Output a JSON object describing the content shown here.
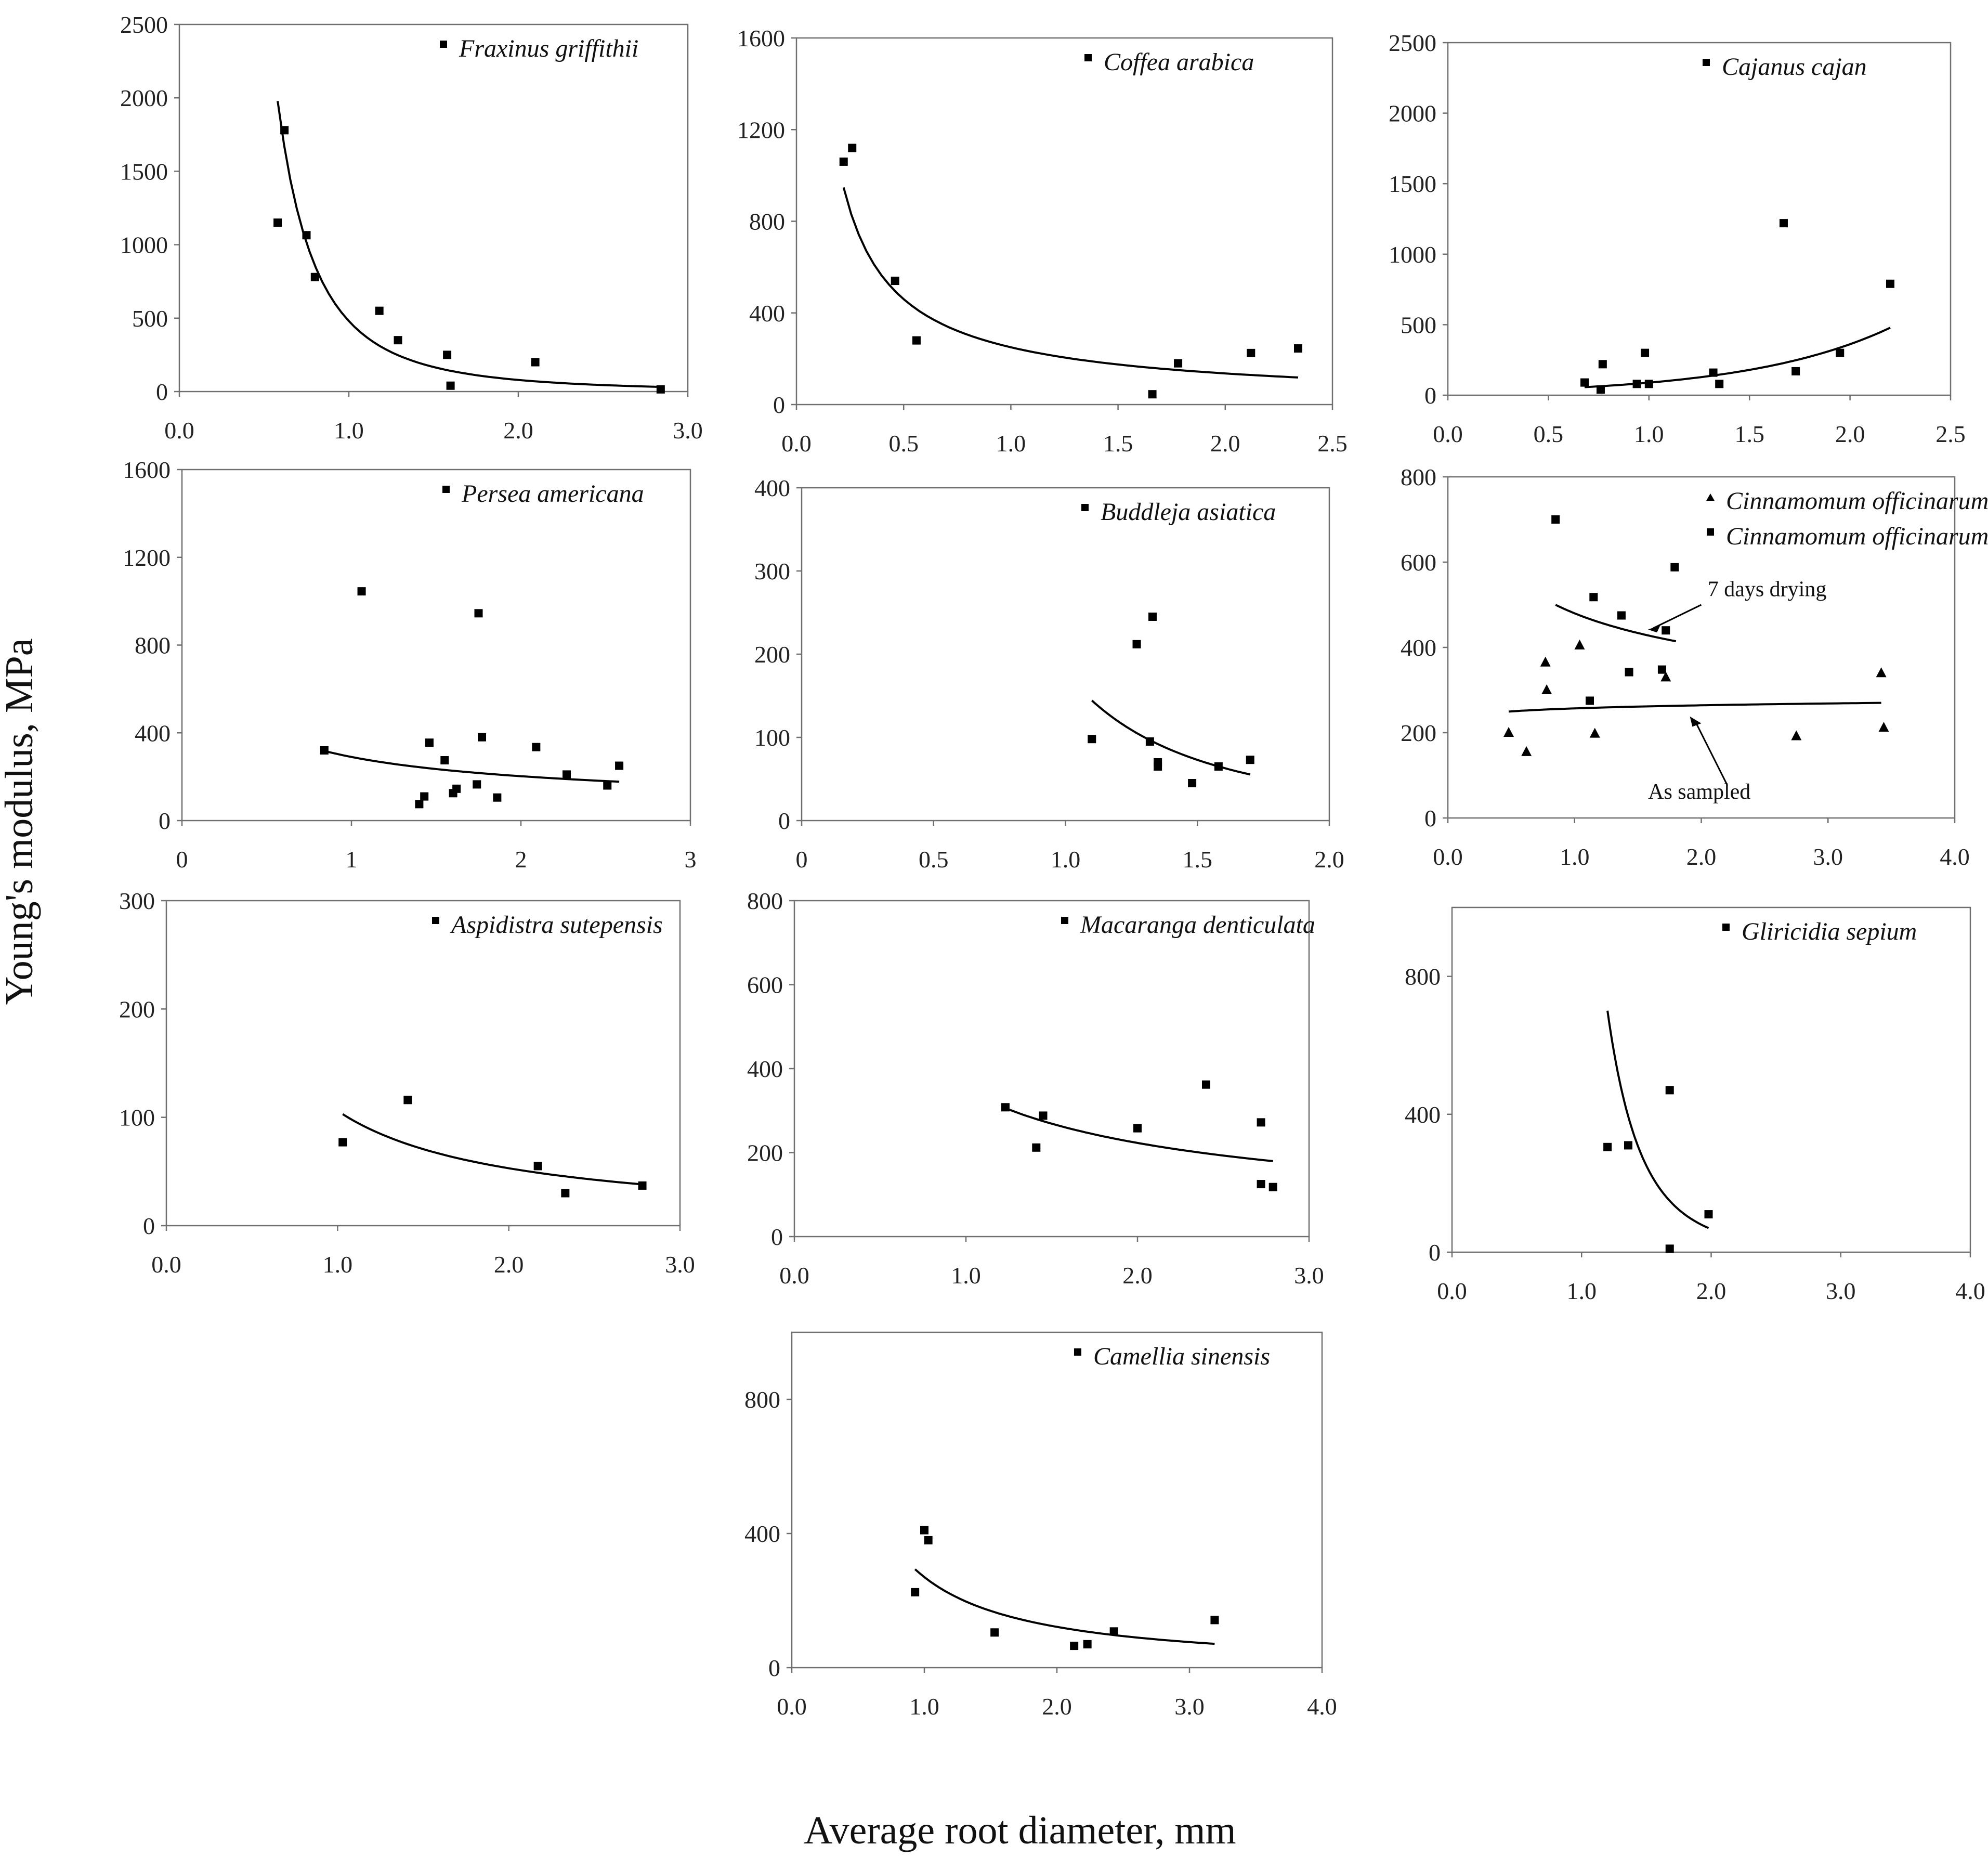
{
  "figure": {
    "ylabel": "Young's modulus, MPa",
    "xlabel": "Average root diameter, mm"
  },
  "chart_data": [
    {
      "type": "scatter",
      "title": "Fraxinus griffithii",
      "xticks": [
        "0.0",
        "1.0",
        "2.0",
        "3.0"
      ],
      "yticks": [
        "0",
        "500",
        "1000",
        "1500",
        "2000",
        "2500"
      ],
      "xlim": [
        0,
        3
      ],
      "ylim": [
        0,
        2500
      ],
      "series": [
        {
          "name": "Fraxinus griffithii",
          "marker": "square",
          "points": [
            [
              0.58,
              1150
            ],
            [
              0.62,
              1780
            ],
            [
              0.75,
              1065
            ],
            [
              0.8,
              780
            ],
            [
              1.18,
              550
            ],
            [
              1.29,
              350
            ],
            [
              1.58,
              250
            ],
            [
              1.6,
              40
            ],
            [
              2.1,
              200
            ],
            [
              2.84,
              15
            ]
          ],
          "fit": {
            "form": "power",
            "a": 480,
            "b": -2.6,
            "x_range": [
              0.58,
              2.84
            ]
          }
        }
      ]
    },
    {
      "type": "scatter",
      "title": "Coffea arabica",
      "xticks": [
        "0.0",
        "0.5",
        "1.0",
        "1.5",
        "2.0",
        "2.5"
      ],
      "yticks": [
        "0",
        "400",
        "800",
        "1200",
        "1600"
      ],
      "xlim": [
        0,
        2.5
      ],
      "ylim": [
        0,
        1600
      ],
      "series": [
        {
          "name": "Coffea arabica",
          "marker": "square",
          "points": [
            [
              0.22,
              1060
            ],
            [
              0.26,
              1120
            ],
            [
              0.46,
              540
            ],
            [
              0.56,
              280
            ],
            [
              1.66,
              45
            ],
            [
              1.78,
              180
            ],
            [
              2.12,
              225
            ],
            [
              2.34,
              245
            ]
          ],
          "fit": {
            "form": "power",
            "a": 250,
            "b": -0.88,
            "x_range": [
              0.22,
              2.34
            ]
          }
        }
      ]
    },
    {
      "type": "scatter",
      "title": "Cajanus cajan",
      "xticks": [
        "0.0",
        "0.5",
        "1.0",
        "1.5",
        "2.0",
        "2.5"
      ],
      "yticks": [
        "0",
        "500",
        "1000",
        "1500",
        "2000",
        "2500"
      ],
      "xlim": [
        0,
        2.5
      ],
      "ylim": [
        0,
        2500
      ],
      "series": [
        {
          "name": "Cajanus cajan",
          "marker": "square",
          "points": [
            [
              0.68,
              90
            ],
            [
              0.76,
              40
            ],
            [
              0.77,
              220
            ],
            [
              0.94,
              80
            ],
            [
              0.98,
              300
            ],
            [
              1.0,
              80
            ],
            [
              1.32,
              160
            ],
            [
              1.35,
              80
            ],
            [
              1.67,
              1220
            ],
            [
              1.73,
              170
            ],
            [
              1.95,
              300
            ],
            [
              2.2,
              790
            ]
          ],
          "fit": {
            "form": "exp",
            "a": 22,
            "b": 1.4,
            "x_range": [
              0.68,
              2.2
            ]
          }
        }
      ]
    },
    {
      "type": "scatter",
      "title": "Persea americana",
      "xticks": [
        "0",
        "1",
        "2",
        "3"
      ],
      "yticks": [
        "0",
        "400",
        "800",
        "1200",
        "1600"
      ],
      "xlim": [
        0,
        3
      ],
      "ylim": [
        0,
        1600
      ],
      "series": [
        {
          "name": "Persea americana",
          "marker": "square",
          "points": [
            [
              0.84,
              320
            ],
            [
              1.06,
              1045
            ],
            [
              1.4,
              75
            ],
            [
              1.43,
              110
            ],
            [
              1.46,
              355
            ],
            [
              1.55,
              275
            ],
            [
              1.6,
              125
            ],
            [
              1.62,
              145
            ],
            [
              1.74,
              165
            ],
            [
              1.75,
              945
            ],
            [
              1.77,
              380
            ],
            [
              1.86,
              105
            ],
            [
              2.09,
              335
            ],
            [
              2.27,
              210
            ],
            [
              2.51,
              160
            ],
            [
              2.58,
              250
            ]
          ],
          "fit": {
            "form": "power",
            "a": 290,
            "b": -0.52,
            "x_range": [
              0.84,
              2.58
            ]
          }
        }
      ]
    },
    {
      "type": "scatter",
      "title": "Buddleja asiatica",
      "xticks": [
        "0",
        "0.5",
        "1.0",
        "1.5",
        "2.0"
      ],
      "yticks": [
        "0",
        "100",
        "200",
        "300",
        "400"
      ],
      "xlim": [
        0,
        2
      ],
      "ylim": [
        0,
        400
      ],
      "series": [
        {
          "name": "Buddleja asiatica",
          "marker": "square",
          "points": [
            [
              1.1,
              98
            ],
            [
              1.27,
              212
            ],
            [
              1.32,
              95
            ],
            [
              1.33,
              245
            ],
            [
              1.35,
              70
            ],
            [
              1.35,
              65
            ],
            [
              1.48,
              45
            ],
            [
              1.58,
              65
            ],
            [
              1.7,
              73
            ]
          ],
          "fit": {
            "form": "power",
            "a": 178,
            "b": -2.2,
            "x_range": [
              1.1,
              1.7
            ]
          }
        }
      ]
    },
    {
      "type": "scatter",
      "title": "Cinnamomum officinarum",
      "xticks": [
        "0.0",
        "1.0",
        "2.0",
        "3.0",
        "4.0"
      ],
      "yticks": [
        "0",
        "200",
        "400",
        "600",
        "800"
      ],
      "xlim": [
        0,
        4
      ],
      "ylim": [
        0,
        800
      ],
      "annotations": [
        "7 days drying",
        "As sampled"
      ],
      "series": [
        {
          "name": "Cinnamomum officinarum",
          "marker": "triangle",
          "points": [
            [
              0.48,
              200
            ],
            [
              0.62,
              155
            ],
            [
              0.77,
              365
            ],
            [
              0.78,
              300
            ],
            [
              1.04,
              405
            ],
            [
              1.16,
              198
            ],
            [
              1.72,
              330
            ],
            [
              2.75,
              192
            ],
            [
              3.42,
              340
            ],
            [
              3.44,
              212
            ]
          ],
          "fit": {
            "form": "power",
            "a": 257,
            "b": 0.04,
            "x_range": [
              0.48,
              3.42
            ]
          }
        },
        {
          "name": "Cinnamomum officinarum*",
          "marker": "square",
          "points": [
            [
              0.85,
              700
            ],
            [
              1.12,
              275
            ],
            [
              1.15,
              518
            ],
            [
              1.37,
              475
            ],
            [
              1.43,
              342
            ],
            [
              1.69,
              348
            ],
            [
              1.72,
              440
            ],
            [
              1.79,
              588
            ]
          ],
          "fit": {
            "form": "power",
            "a": 480,
            "b": -0.25,
            "x_range": [
              0.85,
              1.8
            ]
          }
        }
      ]
    },
    {
      "type": "scatter",
      "title": "Aspidistra sutepensis",
      "xticks": [
        "0.0",
        "1.0",
        "2.0",
        "3.0"
      ],
      "yticks": [
        "0",
        "100",
        "200",
        "300"
      ],
      "xlim": [
        0,
        3
      ],
      "ylim": [
        0,
        300
      ],
      "series": [
        {
          "name": "Aspidistra sutepensis",
          "marker": "square",
          "points": [
            [
              1.03,
              77
            ],
            [
              1.41,
              116
            ],
            [
              2.17,
              55
            ],
            [
              2.33,
              30
            ],
            [
              2.78,
              37
            ]
          ],
          "fit": {
            "form": "power",
            "a": 106,
            "b": -1.0,
            "x_range": [
              1.03,
              2.78
            ]
          }
        }
      ]
    },
    {
      "type": "scatter",
      "title": "Macaranga denticulata",
      "xticks": [
        "0.0",
        "1.0",
        "2.0",
        "3.0"
      ],
      "yticks": [
        "0",
        "200",
        "400",
        "600",
        "800"
      ],
      "xlim": [
        0,
        3
      ],
      "ylim": [
        0,
        800
      ],
      "series": [
        {
          "name": "Macaranga denticulata",
          "marker": "square",
          "points": [
            [
              1.23,
              308
            ],
            [
              1.41,
              212
            ],
            [
              1.45,
              288
            ],
            [
              2.0,
              258
            ],
            [
              2.4,
              362
            ],
            [
              2.72,
              272
            ],
            [
              2.72,
              125
            ],
            [
              2.79,
              118
            ]
          ],
          "fit": {
            "form": "power",
            "a": 350,
            "b": -0.65,
            "x_range": [
              1.23,
              2.79
            ]
          }
        }
      ]
    },
    {
      "type": "scatter",
      "title": "Gliricidia sepium",
      "xticks": [
        "0.0",
        "1.0",
        "2.0",
        "3.0",
        "4.0"
      ],
      "yticks": [
        "0",
        "400",
        "800"
      ],
      "xlim": [
        0,
        4
      ],
      "ylim": [
        0,
        1000
      ],
      "series": [
        {
          "name": "Gliricidia sepium",
          "marker": "square",
          "points": [
            [
              1.2,
              305
            ],
            [
              1.36,
              310
            ],
            [
              1.68,
              470
            ],
            [
              1.68,
              10
            ],
            [
              1.98,
              110
            ]
          ],
          "fit": {
            "form": "power",
            "a": 1620,
            "b": -4.6,
            "x_range": [
              1.2,
              1.98
            ]
          }
        }
      ]
    },
    {
      "type": "scatter",
      "title": "Camellia sinensis",
      "xticks": [
        "0.0",
        "1.0",
        "2.0",
        "3.0",
        "4.0"
      ],
      "yticks": [
        "0",
        "400",
        "800"
      ],
      "xlim": [
        0,
        4
      ],
      "ylim": [
        0,
        1000
      ],
      "series": [
        {
          "name": "Camellia sinensis",
          "marker": "square",
          "points": [
            [
              0.93,
              225
            ],
            [
              1.0,
              410
            ],
            [
              1.03,
              380
            ],
            [
              1.53,
              105
            ],
            [
              2.13,
              65
            ],
            [
              2.23,
              70
            ],
            [
              2.43,
              108
            ],
            [
              3.19,
              142
            ]
          ],
          "fit": {
            "form": "power",
            "a": 270,
            "b": -1.15,
            "x_range": [
              0.93,
              3.19
            ]
          }
        }
      ]
    }
  ]
}
